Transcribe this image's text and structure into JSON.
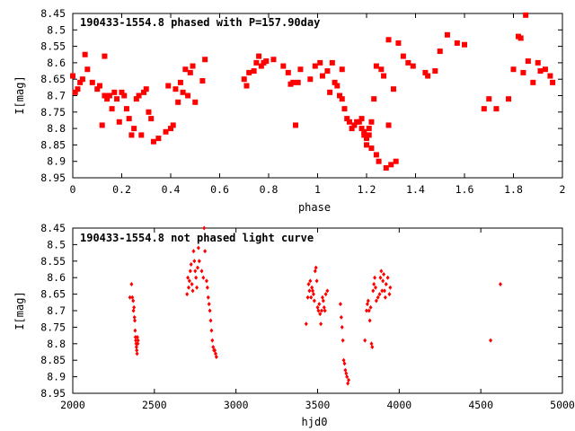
{
  "chart_data": [
    {
      "type": "scatter",
      "title": "190433-1554.8 phased with P=157.90day",
      "xlabel": "phase",
      "ylabel": "I[mag]",
      "xlim": [
        0,
        2
      ],
      "ylim": [
        8.45,
        8.95
      ],
      "y_inverted": true,
      "grid": false,
      "marker_color": "#ff0000",
      "marker": "filled-square",
      "x_ticks": [
        "0",
        "0.2",
        "0.4",
        "0.6",
        "0.8",
        "1",
        "1.2",
        "1.4",
        "1.6",
        "1.8",
        "2"
      ],
      "y_ticks": [
        "8.45",
        "8.5",
        "8.55",
        "8.6",
        "8.65",
        "8.7",
        "8.75",
        "8.8",
        "8.85",
        "8.9",
        "8.95"
      ],
      "series": [
        {
          "points": [
            [
              0.0,
              8.64
            ],
            [
              0.01,
              8.69
            ],
            [
              0.02,
              8.68
            ],
            [
              0.03,
              8.66
            ],
            [
              0.04,
              8.65
            ],
            [
              0.05,
              8.575
            ],
            [
              0.06,
              8.62
            ],
            [
              0.08,
              8.66
            ],
            [
              0.1,
              8.68
            ],
            [
              0.11,
              8.67
            ],
            [
              0.12,
              8.79
            ],
            [
              0.13,
              8.58
            ],
            [
              0.13,
              8.7
            ],
            [
              0.14,
              8.71
            ],
            [
              0.15,
              8.7
            ],
            [
              0.16,
              8.74
            ],
            [
              0.17,
              8.69
            ],
            [
              0.18,
              8.71
            ],
            [
              0.19,
              8.78
            ],
            [
              0.2,
              8.69
            ],
            [
              0.21,
              8.7
            ],
            [
              0.22,
              8.74
            ],
            [
              0.23,
              8.77
            ],
            [
              0.24,
              8.82
            ],
            [
              0.25,
              8.8
            ],
            [
              0.26,
              8.71
            ],
            [
              0.27,
              8.7
            ],
            [
              0.28,
              8.82
            ],
            [
              0.29,
              8.69
            ],
            [
              0.3,
              8.68
            ],
            [
              0.31,
              8.75
            ],
            [
              0.32,
              8.77
            ],
            [
              0.33,
              8.84
            ],
            [
              0.35,
              8.83
            ],
            [
              0.38,
              8.81
            ],
            [
              0.39,
              8.67
            ],
            [
              0.4,
              8.8
            ],
            [
              0.41,
              8.79
            ],
            [
              0.42,
              8.68
            ],
            [
              0.43,
              8.72
            ],
            [
              0.44,
              8.66
            ],
            [
              0.45,
              8.69
            ],
            [
              0.46,
              8.62
            ],
            [
              0.47,
              8.7
            ],
            [
              0.48,
              8.63
            ],
            [
              0.49,
              8.61
            ],
            [
              0.5,
              8.72
            ],
            [
              0.53,
              8.655
            ],
            [
              0.54,
              8.59
            ],
            [
              0.7,
              8.65
            ],
            [
              0.71,
              8.67
            ],
            [
              0.72,
              8.63
            ],
            [
              0.74,
              8.625
            ],
            [
              0.75,
              8.6
            ],
            [
              0.76,
              8.58
            ],
            [
              0.77,
              8.61
            ],
            [
              0.78,
              8.6
            ],
            [
              0.79,
              8.595
            ],
            [
              0.82,
              8.59
            ],
            [
              0.86,
              8.61
            ],
            [
              0.88,
              8.63
            ],
            [
              0.89,
              8.665
            ],
            [
              0.9,
              8.66
            ],
            [
              0.91,
              8.79
            ],
            [
              0.92,
              8.66
            ],
            [
              0.93,
              8.62
            ],
            [
              0.97,
              8.65
            ],
            [
              0.99,
              8.61
            ],
            [
              1.01,
              8.6
            ],
            [
              1.02,
              8.64
            ],
            [
              1.04,
              8.625
            ],
            [
              1.05,
              8.69
            ],
            [
              1.06,
              8.6
            ],
            [
              1.07,
              8.66
            ],
            [
              1.08,
              8.67
            ],
            [
              1.09,
              8.7
            ],
            [
              1.1,
              8.62
            ],
            [
              1.1,
              8.71
            ],
            [
              1.11,
              8.74
            ],
            [
              1.12,
              8.77
            ],
            [
              1.13,
              8.78
            ],
            [
              1.14,
              8.8
            ],
            [
              1.15,
              8.79
            ],
            [
              1.16,
              8.78
            ],
            [
              1.17,
              8.78
            ],
            [
              1.18,
              8.77
            ],
            [
              1.18,
              8.8
            ],
            [
              1.19,
              8.81
            ],
            [
              1.19,
              8.82
            ],
            [
              1.2,
              8.83
            ],
            [
              1.2,
              8.85
            ],
            [
              1.21,
              8.8
            ],
            [
              1.21,
              8.82
            ],
            [
              1.22,
              8.78
            ],
            [
              1.22,
              8.86
            ],
            [
              1.23,
              8.71
            ],
            [
              1.24,
              8.61
            ],
            [
              1.24,
              8.88
            ],
            [
              1.25,
              8.9
            ],
            [
              1.26,
              8.62
            ],
            [
              1.27,
              8.64
            ],
            [
              1.28,
              8.92
            ],
            [
              1.29,
              8.53
            ],
            [
              1.29,
              8.79
            ],
            [
              1.3,
              8.91
            ],
            [
              1.31,
              8.68
            ],
            [
              1.32,
              8.9
            ],
            [
              1.33,
              8.54
            ],
            [
              1.35,
              8.58
            ],
            [
              1.37,
              8.6
            ],
            [
              1.39,
              8.61
            ],
            [
              1.44,
              8.63
            ],
            [
              1.45,
              8.64
            ],
            [
              1.48,
              8.625
            ],
            [
              1.5,
              8.565
            ],
            [
              1.53,
              8.515
            ],
            [
              1.57,
              8.54
            ],
            [
              1.6,
              8.545
            ],
            [
              1.68,
              8.74
            ],
            [
              1.7,
              8.71
            ],
            [
              1.73,
              8.74
            ],
            [
              1.78,
              8.71
            ],
            [
              1.8,
              8.62
            ],
            [
              1.82,
              8.52
            ],
            [
              1.83,
              8.525
            ],
            [
              1.84,
              8.63
            ],
            [
              1.85,
              8.455
            ],
            [
              1.86,
              8.595
            ],
            [
              1.88,
              8.66
            ],
            [
              1.9,
              8.6
            ],
            [
              1.91,
              8.625
            ],
            [
              1.93,
              8.62
            ],
            [
              1.95,
              8.64
            ],
            [
              1.96,
              8.66
            ]
          ]
        }
      ]
    },
    {
      "type": "scatter",
      "title": "190433-1554.8 not phased light curve",
      "xlabel": "hjd0",
      "ylabel": "I[mag]",
      "xlim": [
        2000,
        5000
      ],
      "ylim": [
        8.45,
        8.95
      ],
      "y_inverted": true,
      "grid": false,
      "marker_color": "#ff0000",
      "marker": "small-diamond",
      "x_ticks": [
        "2000",
        "2500",
        "3000",
        "3500",
        "4000",
        "4500",
        "5000"
      ],
      "y_ticks": [
        "8.45",
        "8.5",
        "8.55",
        "8.6",
        "8.65",
        "8.7",
        "8.75",
        "8.8",
        "8.85",
        "8.9",
        "8.95"
      ],
      "series": [
        {
          "points": [
            [
              2350,
              8.66
            ],
            [
              2360,
              8.62
            ],
            [
              2365,
              8.66
            ],
            [
              2370,
              8.67
            ],
            [
              2372,
              8.7
            ],
            [
              2375,
              8.69
            ],
            [
              2378,
              8.72
            ],
            [
              2380,
              8.73
            ],
            [
              2382,
              8.76
            ],
            [
              2384,
              8.78
            ],
            [
              2386,
              8.79
            ],
            [
              2388,
              8.8
            ],
            [
              2390,
              8.81
            ],
            [
              2392,
              8.82
            ],
            [
              2394,
              8.83
            ],
            [
              2396,
              8.78
            ],
            [
              2398,
              8.8
            ],
            [
              2400,
              8.79
            ],
            [
              2700,
              8.65
            ],
            [
              2705,
              8.6
            ],
            [
              2710,
              8.63
            ],
            [
              2715,
              8.61
            ],
            [
              2720,
              8.58
            ],
            [
              2725,
              8.56
            ],
            [
              2730,
              8.62
            ],
            [
              2735,
              8.64
            ],
            [
              2740,
              8.52
            ],
            [
              2745,
              8.55
            ],
            [
              2750,
              8.58
            ],
            [
              2755,
              8.6
            ],
            [
              2760,
              8.63
            ],
            [
              2765,
              8.57
            ],
            [
              2770,
              8.51
            ],
            [
              2775,
              8.55
            ],
            [
              2790,
              8.58
            ],
            [
              2800,
              8.6
            ],
            [
              2805,
              8.45
            ],
            [
              2810,
              8.52
            ],
            [
              2820,
              8.61
            ],
            [
              2825,
              8.63
            ],
            [
              2830,
              8.66
            ],
            [
              2835,
              8.68
            ],
            [
              2840,
              8.7
            ],
            [
              2845,
              8.73
            ],
            [
              2850,
              8.76
            ],
            [
              2855,
              8.79
            ],
            [
              2860,
              8.81
            ],
            [
              2865,
              8.82
            ],
            [
              2870,
              8.82
            ],
            [
              2875,
              8.83
            ],
            [
              2880,
              8.84
            ],
            [
              3430,
              8.74
            ],
            [
              3440,
              8.66
            ],
            [
              3445,
              8.62
            ],
            [
              3450,
              8.64
            ],
            [
              3455,
              8.61
            ],
            [
              3460,
              8.66
            ],
            [
              3465,
              8.63
            ],
            [
              3470,
              8.64
            ],
            [
              3475,
              8.65
            ],
            [
              3480,
              8.67
            ],
            [
              3485,
              8.58
            ],
            [
              3490,
              8.57
            ],
            [
              3495,
              8.61
            ],
            [
              3500,
              8.69
            ],
            [
              3505,
              8.7
            ],
            [
              3510,
              8.68
            ],
            [
              3515,
              8.71
            ],
            [
              3520,
              8.74
            ],
            [
              3525,
              8.7
            ],
            [
              3530,
              8.66
            ],
            [
              3535,
              8.67
            ],
            [
              3540,
              8.69
            ],
            [
              3545,
              8.7
            ],
            [
              3550,
              8.65
            ],
            [
              3560,
              8.64
            ],
            [
              3640,
              8.68
            ],
            [
              3645,
              8.72
            ],
            [
              3650,
              8.75
            ],
            [
              3655,
              8.79
            ],
            [
              3660,
              8.85
            ],
            [
              3665,
              8.86
            ],
            [
              3670,
              8.88
            ],
            [
              3675,
              8.89
            ],
            [
              3680,
              8.9
            ],
            [
              3685,
              8.92
            ],
            [
              3690,
              8.91
            ],
            [
              3790,
              8.79
            ],
            [
              3800,
              8.7
            ],
            [
              3805,
              8.68
            ],
            [
              3810,
              8.67
            ],
            [
              3815,
              8.7
            ],
            [
              3820,
              8.73
            ],
            [
              3825,
              8.69
            ],
            [
              3830,
              8.8
            ],
            [
              3835,
              8.81
            ],
            [
              3840,
              8.64
            ],
            [
              3845,
              8.62
            ],
            [
              3850,
              8.6
            ],
            [
              3855,
              8.63
            ],
            [
              3860,
              8.67
            ],
            [
              3870,
              8.66
            ],
            [
              3880,
              8.65
            ],
            [
              3885,
              8.6
            ],
            [
              3890,
              8.58
            ],
            [
              3895,
              8.64
            ],
            [
              3900,
              8.61
            ],
            [
              3905,
              8.59
            ],
            [
              3910,
              8.64
            ],
            [
              3915,
              8.66
            ],
            [
              3920,
              8.62
            ],
            [
              3930,
              8.6
            ],
            [
              3940,
              8.65
            ],
            [
              3945,
              8.63
            ],
            [
              4560,
              8.79
            ],
            [
              4620,
              8.62
            ]
          ]
        }
      ]
    }
  ]
}
